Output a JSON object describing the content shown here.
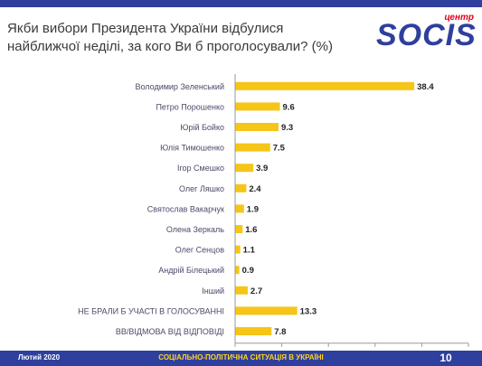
{
  "header": {
    "title": "Якби вибори Президента України відбулися найближчої неділі, за кого Ви б проголосували? (%)"
  },
  "logo": {
    "small_text": "центр",
    "wordmark": "SOCIS"
  },
  "footer": {
    "date": "Лютий 2020",
    "center_text": "СОЦІАЛЬНО-ПОЛІТИЧНА СИТУАЦІЯ В УКРАЇНІ",
    "page": "10"
  },
  "colors": {
    "bar": "#f5c518",
    "brand_blue": "#2e3f9e",
    "brand_red": "#e2001a"
  },
  "chart_data": {
    "type": "bar",
    "orientation": "horizontal",
    "title": "Якби вибори Президента України відбулися найближчої неділі, за кого Ви б проголосували? (%)",
    "categories": [
      "Володимир Зеленський",
      "Петро Порошенко",
      "Юрій Бойко",
      "Юлія Тимошенко",
      "Ігор Смешко",
      "Олег Ляшко",
      "Святослав Вакарчук",
      "Олена Зеркаль",
      "Олег Сенцов",
      "Андрій Білецький",
      "Інший",
      "НЕ БРАЛИ Б УЧАСТІ В ГОЛОСУВАННІ",
      "ВВ/ВІДМОВА ВІД ВІДПОВІДІ"
    ],
    "values": [
      38.4,
      9.6,
      9.3,
      7.5,
      3.9,
      2.4,
      1.9,
      1.6,
      1.1,
      0.9,
      2.7,
      13.3,
      7.8
    ],
    "value_labels": [
      "38.4",
      "9.6",
      "9.3",
      "7.5",
      "3.9",
      "2.4",
      "1.9",
      "1.6",
      "1.1",
      "0.9",
      "2.7",
      "13.3",
      "7.8"
    ],
    "xlim": [
      0,
      50
    ],
    "xticks": [
      "0",
      "10",
      "20",
      "30",
      "40",
      "50"
    ],
    "xlabel": "",
    "ylabel": "",
    "grid": false,
    "legend": "none"
  }
}
